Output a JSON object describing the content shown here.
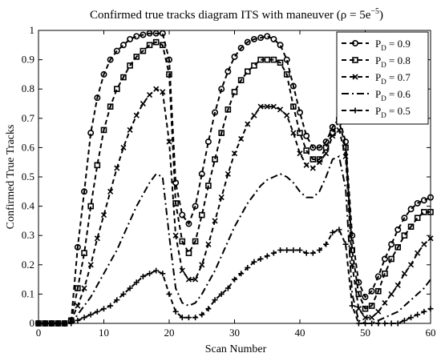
{
  "chart_data": {
    "type": "line",
    "title_main": "Confirmed true tracks diagram ITS with maneuver (",
    "title_rho": "ρ",
    "title_eq": " = 5e",
    "title_exp": "−5",
    "title_close": ")",
    "xlabel": "Scan Number",
    "ylabel": "Confirmed True Tracks",
    "xlim": [
      0,
      60
    ],
    "ylim": [
      0,
      1
    ],
    "xticks": [
      "0",
      "10",
      "20",
      "30",
      "40",
      "50",
      "60"
    ],
    "yticks": [
      "0",
      "0.1",
      "0.2",
      "0.3",
      "0.4",
      "0.5",
      "0.6",
      "0.7",
      "0.8",
      "0.9",
      "1"
    ],
    "grid": false,
    "legend_position": "top-right",
    "series": [
      {
        "name": "= 0.9",
        "legend_prefix": "P",
        "legend_sub": "D",
        "marker": "circle",
        "line": "dashed",
        "x": [
          0,
          1,
          2,
          3,
          4,
          5,
          6,
          7,
          8,
          9,
          10,
          11,
          12,
          13,
          14,
          15,
          16,
          17,
          18,
          19,
          20,
          21,
          22,
          23,
          24,
          25,
          26,
          27,
          28,
          29,
          30,
          31,
          32,
          33,
          34,
          35,
          36,
          37,
          38,
          39,
          40,
          41,
          42,
          43,
          44,
          45,
          46,
          47,
          48,
          49,
          50,
          51,
          52,
          53,
          54,
          55,
          56,
          57,
          58,
          59,
          60
        ],
        "y": [
          0,
          0,
          0,
          0,
          0,
          0.01,
          0.26,
          0.45,
          0.65,
          0.77,
          0.85,
          0.9,
          0.93,
          0.95,
          0.97,
          0.98,
          0.985,
          0.99,
          0.99,
          0.99,
          0.9,
          0.48,
          0.37,
          0.34,
          0.4,
          0.51,
          0.62,
          0.72,
          0.8,
          0.86,
          0.91,
          0.94,
          0.96,
          0.97,
          0.975,
          0.98,
          0.97,
          0.95,
          0.9,
          0.81,
          0.72,
          0.64,
          0.6,
          0.6,
          0.62,
          0.67,
          0.7,
          0.62,
          0.3,
          0.14,
          0.09,
          0.11,
          0.16,
          0.22,
          0.27,
          0.32,
          0.36,
          0.39,
          0.41,
          0.42,
          0.43
        ]
      },
      {
        "name": "= 0.8",
        "legend_prefix": "P",
        "legend_sub": "D",
        "marker": "square",
        "line": "dashed",
        "x": [
          0,
          1,
          2,
          3,
          4,
          5,
          6,
          7,
          8,
          9,
          10,
          11,
          12,
          13,
          14,
          15,
          16,
          17,
          18,
          19,
          20,
          21,
          22,
          23,
          24,
          25,
          26,
          27,
          28,
          29,
          30,
          31,
          32,
          33,
          34,
          35,
          36,
          37,
          38,
          39,
          40,
          41,
          42,
          43,
          44,
          45,
          46,
          47,
          48,
          49,
          50,
          51,
          52,
          53,
          54,
          55,
          56,
          57,
          58,
          59,
          60
        ],
        "y": [
          0,
          0,
          0,
          0,
          0,
          0.01,
          0.12,
          0.24,
          0.4,
          0.54,
          0.66,
          0.74,
          0.8,
          0.84,
          0.88,
          0.91,
          0.93,
          0.95,
          0.96,
          0.95,
          0.85,
          0.41,
          0.28,
          0.24,
          0.28,
          0.37,
          0.47,
          0.56,
          0.65,
          0.73,
          0.79,
          0.83,
          0.86,
          0.88,
          0.9,
          0.9,
          0.9,
          0.89,
          0.85,
          0.74,
          0.65,
          0.59,
          0.56,
          0.56,
          0.6,
          0.65,
          0.69,
          0.6,
          0.25,
          0.1,
          0.05,
          0.06,
          0.11,
          0.17,
          0.22,
          0.26,
          0.3,
          0.33,
          0.36,
          0.38,
          0.38
        ]
      },
      {
        "name": "= 0.7",
        "legend_prefix": "P",
        "legend_sub": "D",
        "marker": "x",
        "line": "dashed",
        "x": [
          0,
          1,
          2,
          3,
          4,
          5,
          6,
          7,
          8,
          9,
          10,
          11,
          12,
          13,
          14,
          15,
          16,
          17,
          18,
          19,
          20,
          21,
          22,
          23,
          24,
          25,
          26,
          27,
          28,
          29,
          30,
          31,
          32,
          33,
          34,
          35,
          36,
          37,
          38,
          39,
          40,
          41,
          42,
          43,
          44,
          45,
          46,
          47,
          48,
          49,
          50,
          51,
          52,
          53,
          54,
          55,
          56,
          57,
          58,
          59,
          60
        ],
        "y": [
          0,
          0,
          0,
          0,
          0,
          0.01,
          0.06,
          0.12,
          0.2,
          0.29,
          0.37,
          0.45,
          0.53,
          0.6,
          0.66,
          0.71,
          0.75,
          0.78,
          0.8,
          0.79,
          0.62,
          0.3,
          0.18,
          0.15,
          0.15,
          0.2,
          0.27,
          0.35,
          0.43,
          0.51,
          0.58,
          0.63,
          0.68,
          0.71,
          0.74,
          0.74,
          0.74,
          0.73,
          0.71,
          0.65,
          0.58,
          0.54,
          0.53,
          0.55,
          0.58,
          0.64,
          0.66,
          0.57,
          0.2,
          0.05,
          0.02,
          0.02,
          0.04,
          0.07,
          0.1,
          0.13,
          0.17,
          0.2,
          0.24,
          0.27,
          0.29
        ]
      },
      {
        "name": "= 0.6",
        "legend_prefix": "P",
        "legend_sub": "D",
        "marker": "none",
        "line": "dashdot",
        "x": [
          0,
          1,
          2,
          3,
          4,
          5,
          6,
          7,
          8,
          9,
          10,
          11,
          12,
          13,
          14,
          15,
          16,
          17,
          18,
          19,
          20,
          21,
          22,
          23,
          24,
          25,
          26,
          27,
          28,
          29,
          30,
          31,
          32,
          33,
          34,
          35,
          36,
          37,
          38,
          39,
          40,
          41,
          42,
          43,
          44,
          45,
          46,
          47,
          48,
          49,
          50,
          51,
          52,
          53,
          54,
          55,
          56,
          57,
          58,
          59,
          60
        ],
        "y": [
          0,
          0,
          0,
          0,
          0,
          0,
          0.03,
          0.06,
          0.09,
          0.13,
          0.17,
          0.21,
          0.25,
          0.3,
          0.35,
          0.4,
          0.44,
          0.48,
          0.51,
          0.5,
          0.3,
          0.12,
          0.07,
          0.06,
          0.07,
          0.1,
          0.14,
          0.18,
          0.23,
          0.28,
          0.33,
          0.37,
          0.41,
          0.44,
          0.47,
          0.49,
          0.5,
          0.51,
          0.5,
          0.48,
          0.45,
          0.43,
          0.43,
          0.45,
          0.5,
          0.56,
          0.57,
          0.46,
          0.1,
          0.01,
          0,
          0,
          0.01,
          0.02,
          0.03,
          0.04,
          0.06,
          0.08,
          0.1,
          0.12,
          0.15
        ]
      },
      {
        "name": "= 0.5",
        "legend_prefix": "P",
        "legend_sub": "D",
        "marker": "plus",
        "line": "dashed",
        "x": [
          0,
          1,
          2,
          3,
          4,
          5,
          6,
          7,
          8,
          9,
          10,
          11,
          12,
          13,
          14,
          15,
          16,
          17,
          18,
          19,
          20,
          21,
          22,
          23,
          24,
          25,
          26,
          27,
          28,
          29,
          30,
          31,
          32,
          33,
          34,
          35,
          36,
          37,
          38,
          39,
          40,
          41,
          42,
          43,
          44,
          45,
          46,
          47,
          48,
          49,
          50,
          51,
          52,
          53,
          54,
          55,
          56,
          57,
          58,
          59,
          60
        ],
        "y": [
          0,
          0,
          0,
          0,
          0,
          0,
          0.01,
          0.02,
          0.03,
          0.04,
          0.05,
          0.06,
          0.08,
          0.1,
          0.12,
          0.14,
          0.16,
          0.17,
          0.18,
          0.17,
          0.1,
          0.04,
          0.02,
          0.02,
          0.02,
          0.03,
          0.05,
          0.08,
          0.1,
          0.12,
          0.15,
          0.17,
          0.19,
          0.21,
          0.22,
          0.23,
          0.24,
          0.25,
          0.25,
          0.25,
          0.25,
          0.24,
          0.24,
          0.25,
          0.27,
          0.31,
          0.32,
          0.27,
          0.06,
          0,
          0,
          0,
          0,
          0,
          0,
          0,
          0.01,
          0.02,
          0.03,
          0.04,
          0.05
        ]
      }
    ]
  }
}
